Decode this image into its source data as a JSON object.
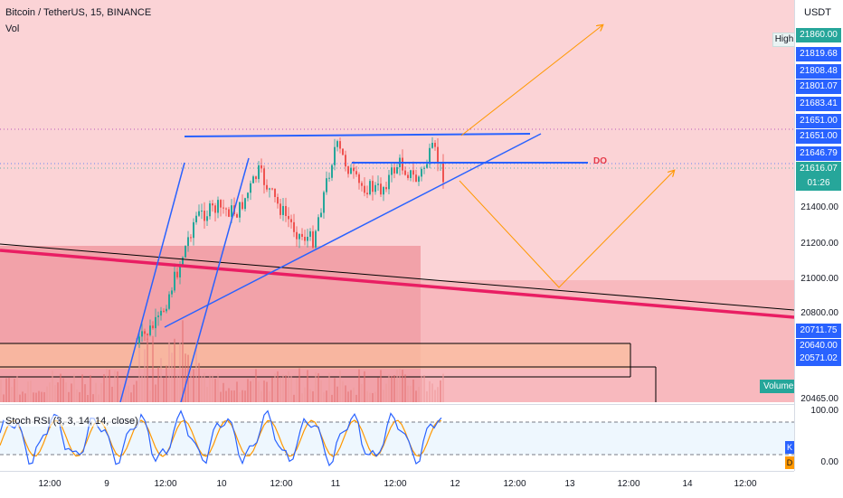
{
  "header": {
    "symbol_title": "Bitcoin / TetherUS, 15, BINANCE",
    "volume_label": "Vol"
  },
  "price_axis": {
    "currency": "USDT",
    "ticks": [
      "21400.00",
      "21200.00",
      "21000.00",
      "20800.00",
      "20465.00"
    ],
    "high_label": "High",
    "badges": [
      {
        "label": "21860.00",
        "color": "#26a69a"
      },
      {
        "label": "21819.68",
        "color": "#2962ff"
      },
      {
        "label": "21808.48",
        "color": "#2962ff"
      },
      {
        "label": "21801.07",
        "color": "#2962ff"
      },
      {
        "label": "21683.41",
        "color": "#2962ff"
      },
      {
        "label": "21651.00",
        "color": "#2962ff"
      },
      {
        "label": "21651.00",
        "color": "#2962ff"
      },
      {
        "label": "21646.79",
        "color": "#2962ff"
      },
      {
        "label": "21616.07",
        "color": "#26a69a"
      },
      {
        "label": "01:26",
        "color": "#26a69a"
      },
      {
        "label": "20711.75",
        "color": "#2962ff"
      },
      {
        "label": "20640.00",
        "color": "#2962ff"
      },
      {
        "label": "20571.02",
        "color": "#2962ff"
      }
    ]
  },
  "chart": {
    "annotation_label": "DO",
    "volume_tag": "Volume",
    "colors": {
      "up": "#26a69a",
      "down": "#ef5350",
      "trendline": "#2962ff",
      "arrow": "#ff9800",
      "thick_line": "#e91e63",
      "background": "#fbd3d6"
    }
  },
  "stoch_rsi": {
    "label": "Stoch RSI (3, 3, 14, 14, close)",
    "ticks": [
      "100.00",
      "0.00"
    ],
    "k_label": "K",
    "d_label": "D",
    "k_color": "#2962ff",
    "d_color": "#ff9800"
  },
  "time_axis": {
    "ticks": [
      "12:00",
      "9",
      "12:00",
      "10",
      "12:00",
      "11",
      "12:00",
      "12",
      "12:00",
      "13",
      "12:00",
      "14",
      "12:00"
    ]
  }
}
